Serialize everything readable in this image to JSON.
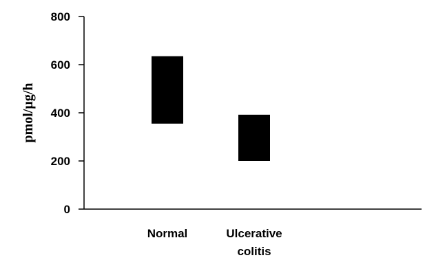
{
  "chart_data": {
    "type": "bar",
    "categories": [
      [
        "Normal"
      ],
      [
        "Ulcerative",
        "colitis"
      ]
    ],
    "series": [
      {
        "values": [
          [
            355,
            635
          ],
          [
            200,
            392
          ]
        ]
      }
    ],
    "ylabel": "pmol/µg/h",
    "xlabel": "",
    "yticks": [
      "0",
      "200",
      "400",
      "600",
      "800"
    ],
    "ylim": [
      0,
      800
    ],
    "grid": false,
    "bar_color": "#000000"
  }
}
